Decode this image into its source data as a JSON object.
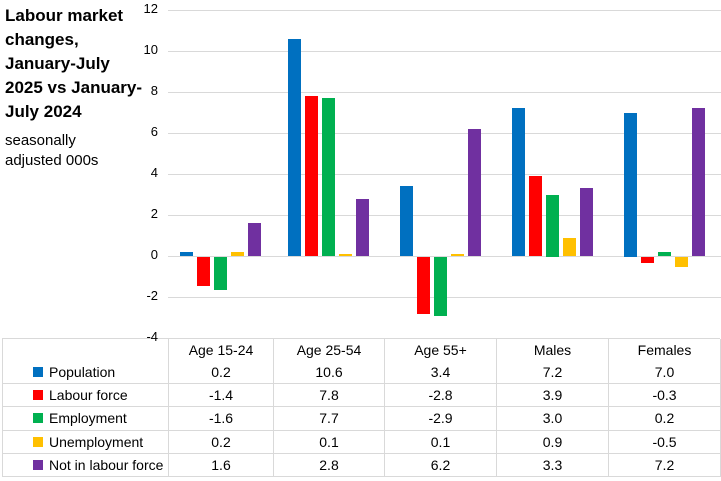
{
  "chart_data": {
    "type": "bar",
    "title": "Labour market changes, January-July 2025 vs January-July 2024",
    "subtitle": "seasonally adjusted 000s",
    "categories": [
      "Age 15-24",
      "Age 25-54",
      "Age 55+",
      "Males",
      "Females"
    ],
    "series": [
      {
        "name": "Population",
        "color": "#0070C0",
        "values": [
          0.2,
          10.6,
          3.4,
          7.2,
          7.0
        ]
      },
      {
        "name": "Labour force",
        "color": "#FF0000",
        "values": [
          -1.4,
          7.8,
          -2.8,
          3.9,
          -0.3
        ]
      },
      {
        "name": "Employment",
        "color": "#00B050",
        "values": [
          -1.6,
          7.7,
          -2.9,
          3.0,
          0.2
        ]
      },
      {
        "name": "Unemployment",
        "color": "#FFC000",
        "values": [
          0.2,
          0.1,
          0.1,
          0.9,
          -0.5
        ]
      },
      {
        "name": "Not in labour force",
        "color": "#7030A0",
        "values": [
          1.6,
          2.8,
          6.2,
          3.3,
          7.2
        ]
      }
    ],
    "y_axis": {
      "min": -4,
      "max": 12,
      "step": 2
    },
    "ylim": [
      -4,
      12
    ],
    "grid": true,
    "legend_position": "data-table-left",
    "data_table": true,
    "value_decimals": 1
  },
  "colors": {
    "gridline": "#D9D9D9",
    "table_border": "#D9D9D9",
    "text": "#000000",
    "background": "#FFFFFF"
  }
}
